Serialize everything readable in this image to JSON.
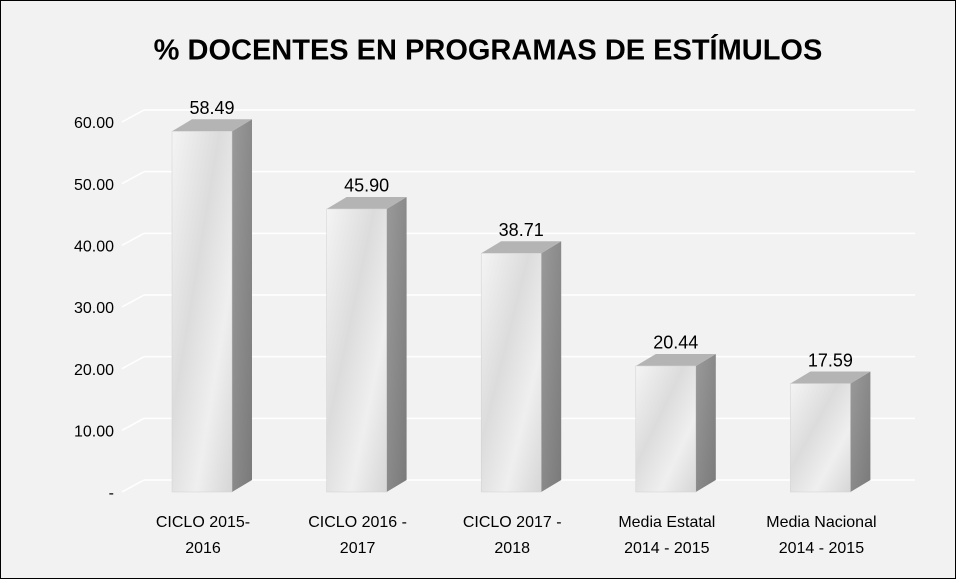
{
  "chart_data": {
    "type": "bar3d",
    "title": "% DOCENTES EN PROGRAMAS DE ESTÍMULOS",
    "categories": [
      [
        "CICLO 2015-",
        "2016"
      ],
      [
        "CICLO 2016 -",
        "2017"
      ],
      [
        "CICLO 2017 -",
        "2018"
      ],
      [
        "Media Estatal",
        "2014 - 2015"
      ],
      [
        "Media Nacional",
        "2014 - 2015"
      ]
    ],
    "values": [
      58.49,
      45.9,
      38.71,
      20.44,
      17.59
    ],
    "value_labels": [
      "58.49",
      "45.90",
      "38.71",
      "20.44",
      "17.59"
    ],
    "color": "#e6e6e6",
    "ylim": [
      0,
      60
    ],
    "yticks": [
      {
        "value": 0,
        "label": "-"
      },
      {
        "value": 10,
        "label": "10.00"
      },
      {
        "value": 20,
        "label": "20.00"
      },
      {
        "value": 30,
        "label": "30.00"
      },
      {
        "value": 40,
        "label": "40.00"
      },
      {
        "value": 50,
        "label": "50.00"
      },
      {
        "value": 60,
        "label": "60.00"
      }
    ],
    "grid": true
  }
}
